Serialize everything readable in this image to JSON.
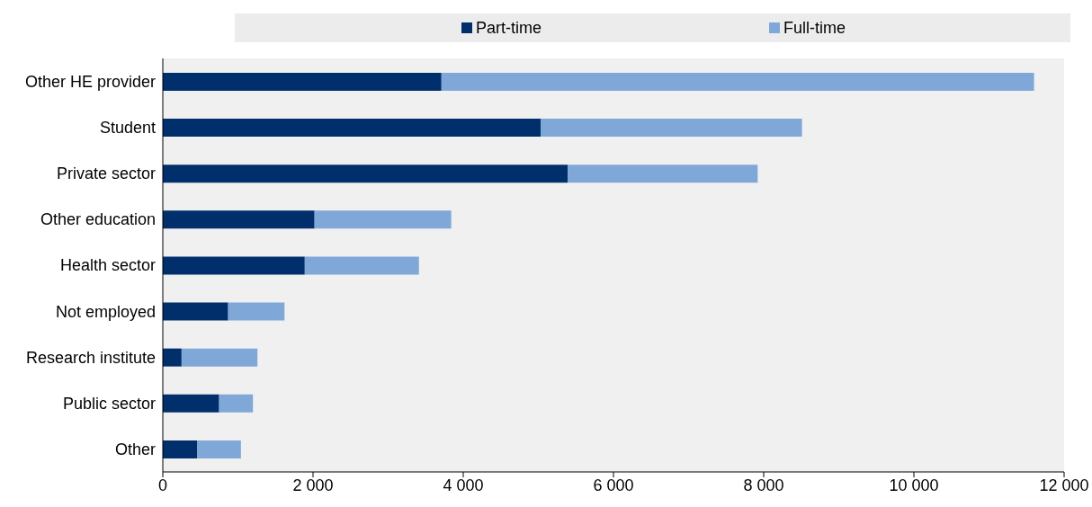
{
  "chart_data": {
    "type": "bar",
    "orientation": "horizontal",
    "stacked": true,
    "categories": [
      "Other HE provider",
      "Student",
      "Private sector",
      "Other education",
      "Health sector",
      "Not employed",
      "Research institute",
      "Public sector",
      "Other"
    ],
    "series": [
      {
        "name": "Part-time",
        "color": "#002f6c",
        "values": [
          3710,
          5030,
          5390,
          2020,
          1890,
          870,
          250,
          750,
          460
        ]
      },
      {
        "name": "Full-time",
        "color": "#7fa8d9",
        "values": [
          7890,
          3480,
          2530,
          1820,
          1520,
          750,
          1010,
          450,
          580
        ]
      }
    ],
    "xlim": [
      0,
      12000
    ],
    "xticks": [
      0,
      {
        "value": 2000,
        "label": "2 000"
      },
      {
        "value": 4000,
        "label": "4 000"
      },
      {
        "value": 6000,
        "label": "6 000"
      },
      {
        "value": 8000,
        "label": "8 000"
      },
      {
        "value": 10000,
        "label": "10 000"
      },
      {
        "value": 12000,
        "label": "12 000"
      }
    ],
    "legend": "top"
  }
}
